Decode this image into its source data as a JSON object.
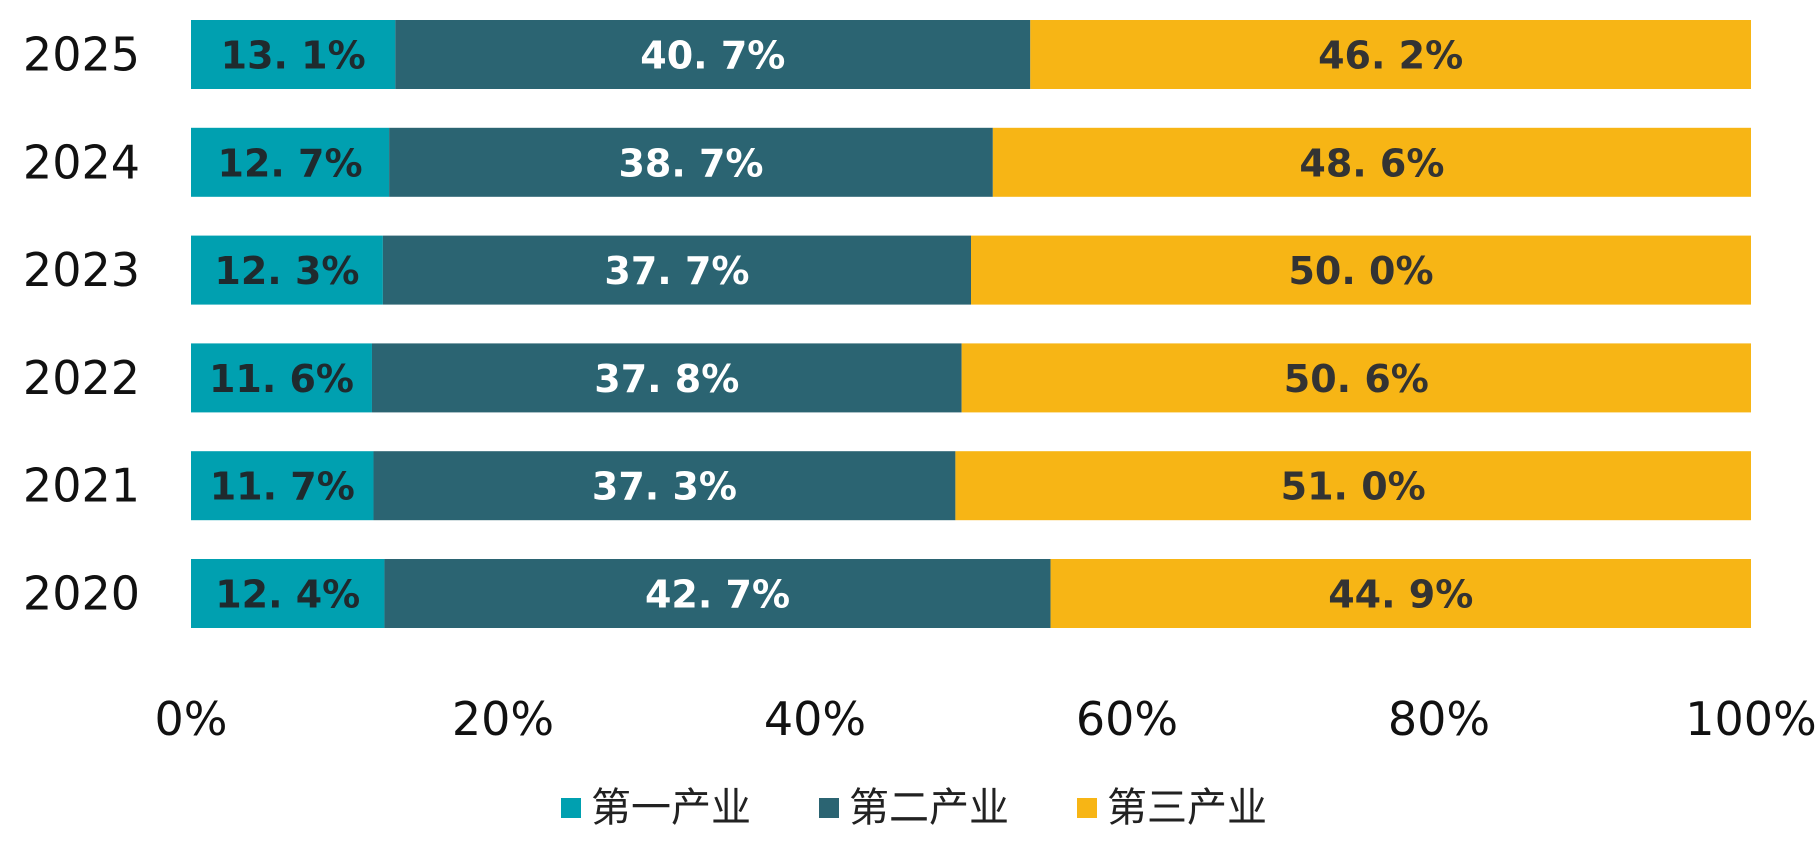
{
  "chart_data": {
    "type": "bar",
    "orientation": "horizontal",
    "stacked": "percent",
    "categories": [
      "2025",
      "2024",
      "2023",
      "2022",
      "2021",
      "2020"
    ],
    "series": [
      {
        "name": "第一产业",
        "color": "#00A0B0",
        "label_color": "#1F2A2E",
        "values": [
          13.1,
          12.7,
          12.3,
          11.6,
          11.7,
          12.4
        ],
        "labels": [
          "13. 1%",
          "12. 7%",
          "12. 3%",
          "11. 6%",
          "11. 7%",
          "12. 4%"
        ]
      },
      {
        "name": "第二产业",
        "color": "#2B6472",
        "label_color": "#FFFFFF",
        "values": [
          40.7,
          38.7,
          37.7,
          37.8,
          37.3,
          42.7
        ],
        "labels": [
          "40. 7%",
          "38. 7%",
          "37. 7%",
          "37. 8%",
          "37. 3%",
          "42. 7%"
        ]
      },
      {
        "name": "第三产业",
        "color": "#F7B515",
        "label_color": "#333333",
        "values": [
          46.2,
          48.6,
          50.0,
          50.6,
          51.0,
          44.9
        ],
        "labels": [
          "46. 2%",
          "48. 6%",
          "50. 0%",
          "50. 6%",
          "51. 0%",
          "44. 9%"
        ]
      }
    ],
    "xlim": [
      0,
      100
    ],
    "xticks": [
      0,
      20,
      40,
      60,
      80,
      100
    ],
    "xtick_labels": [
      "0%",
      "20%",
      "40%",
      "60%",
      "80%",
      "100%"
    ],
    "grid": false,
    "legend_position": "bottom"
  }
}
